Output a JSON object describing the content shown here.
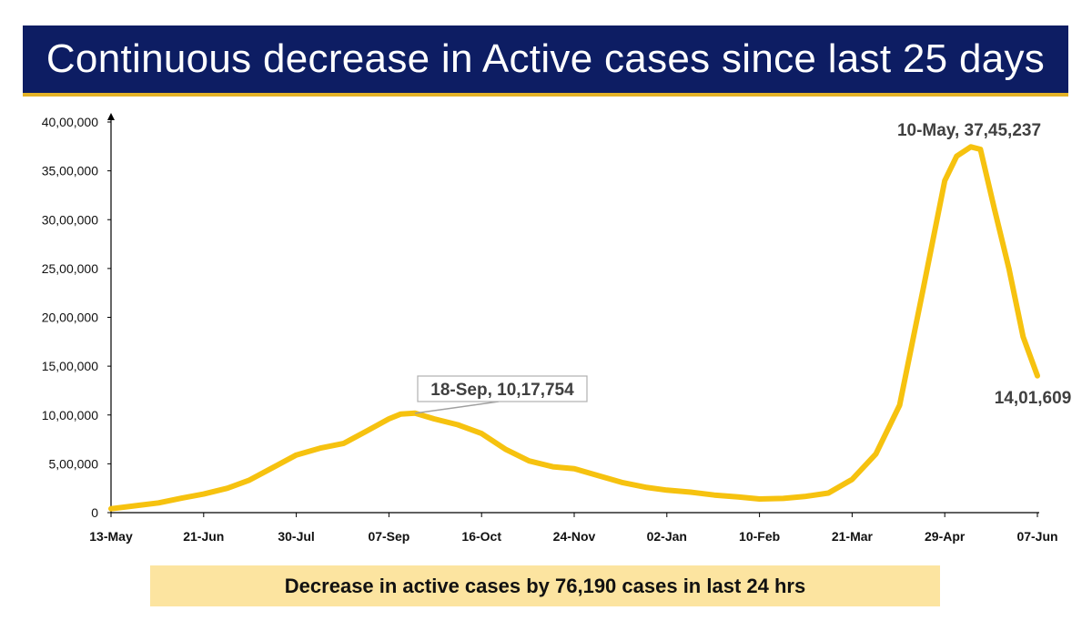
{
  "header": {
    "title": "Continuous decrease in Active cases since last 25 days"
  },
  "footer": {
    "text": "Decrease in active cases by 76,190 cases in last 24 hrs"
  },
  "colors": {
    "header_bg": "#0d1d63",
    "header_border": "#e4b226",
    "line": "#f6c20f",
    "footer_bg": "#fce4a0"
  },
  "chart_data": {
    "type": "line",
    "title": "",
    "xlabel": "",
    "ylabel": "",
    "ylim": [
      0,
      4000000
    ],
    "yticks": [
      0,
      500000,
      1000000,
      1500000,
      2000000,
      2500000,
      3000000,
      3500000,
      4000000
    ],
    "ytick_labels": [
      "0",
      "5,00,000",
      "10,00,000",
      "15,00,000",
      "20,00,000",
      "25,00,000",
      "30,00,000",
      "35,00,000",
      "40,00,000"
    ],
    "xtick_labels": [
      "13-May",
      "21-Jun",
      "30-Jul",
      "07-Sep",
      "16-Oct",
      "24-Nov",
      "02-Jan",
      "10-Feb",
      "21-Mar",
      "29-Apr",
      "07-Jun"
    ],
    "x_range": [
      "2020-05-13",
      "2021-06-07"
    ],
    "grid": false,
    "series": [
      {
        "x": [
          "2020-05-13",
          "2020-05-23",
          "2020-06-02",
          "2020-06-12",
          "2020-06-21",
          "2020-07-01",
          "2020-07-10",
          "2020-07-20",
          "2020-07-30",
          "2020-08-09",
          "2020-08-19",
          "2020-08-29",
          "2020-09-07",
          "2020-09-12",
          "2020-09-18",
          "2020-09-26",
          "2020-10-06",
          "2020-10-16",
          "2020-10-26",
          "2020-11-05",
          "2020-11-15",
          "2020-11-24",
          "2020-12-04",
          "2020-12-14",
          "2020-12-24",
          "2021-01-02",
          "2021-01-12",
          "2021-01-22",
          "2021-02-01",
          "2021-02-10",
          "2021-02-20",
          "2021-03-01",
          "2021-03-11",
          "2021-03-21",
          "2021-03-31",
          "2021-04-10",
          "2021-04-20",
          "2021-04-29",
          "2021-05-04",
          "2021-05-10",
          "2021-05-14",
          "2021-05-20",
          "2021-05-26",
          "2021-06-01",
          "2021-06-07"
        ],
        "values": [
          40000,
          70000,
          100000,
          150000,
          190000,
          250000,
          330000,
          460000,
          590000,
          660000,
          710000,
          840000,
          960000,
          1010000,
          1017754,
          960000,
          900000,
          810000,
          650000,
          530000,
          470000,
          450000,
          380000,
          310000,
          260000,
          230000,
          210000,
          180000,
          160000,
          140000,
          145000,
          165000,
          200000,
          340000,
          600000,
          1100000,
          2300000,
          3400000,
          3650000,
          3745237,
          3720000,
          3100000,
          2500000,
          1800000,
          1401609
        ]
      }
    ],
    "annotations": [
      {
        "date": "18-Sep",
        "label": "18-Sep, 10,17,754",
        "value": 1017754
      },
      {
        "date": "10-May",
        "label": "10-May, 37,45,237",
        "value": 3745237
      },
      {
        "date": "07-Jun",
        "label": "14,01,609",
        "value": 1401609
      }
    ]
  }
}
